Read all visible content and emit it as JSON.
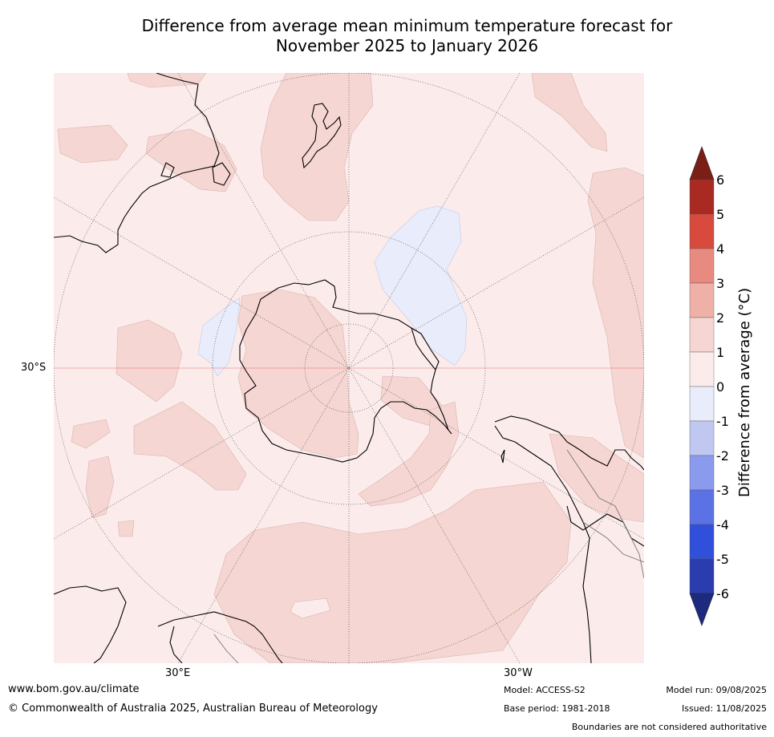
{
  "title_line1": "Difference from average mean minimum temperature forecast for",
  "title_line2": "November 2025 to January 2026",
  "map": {
    "lat_label": "30°S",
    "lon_labels": [
      "30°E",
      "30°W"
    ]
  },
  "colorbar": {
    "label": "Difference from average (°C)",
    "ticks": [
      "6",
      "5",
      "4",
      "3",
      "2",
      "1",
      "0",
      "-1",
      "-2",
      "-3",
      "-4",
      "-5",
      "-6"
    ],
    "colors": {
      "over": "#7a1e16",
      "5_6": "#a82a22",
      "4_5": "#d84a3e",
      "3_4": "#e88a80",
      "2_3": "#efb0a8",
      "1_2": "#f5d6d2",
      "0_1": "#fbeceb",
      "m1_0": "#e9ecfa",
      "m2_m1": "#c0c8f2",
      "m3_m2": "#8a9aec",
      "m4_m3": "#5a72e4",
      "m5_m4": "#3050dc",
      "m6_m5": "#2a3cae",
      "under": "#1d2a80"
    }
  },
  "footer": {
    "website": "www.bom.gov.au/climate",
    "copyright": "© Commonwealth of Australia 2025, Australian Bureau of Meteorology",
    "model": "Model: ACCESS-S2",
    "base_period": "Base period: 1981-2018",
    "model_run": "Model run: 09/08/2025",
    "issued": "Issued: 11/08/2025",
    "disclaimer": "Boundaries are not considered authoritative"
  }
}
